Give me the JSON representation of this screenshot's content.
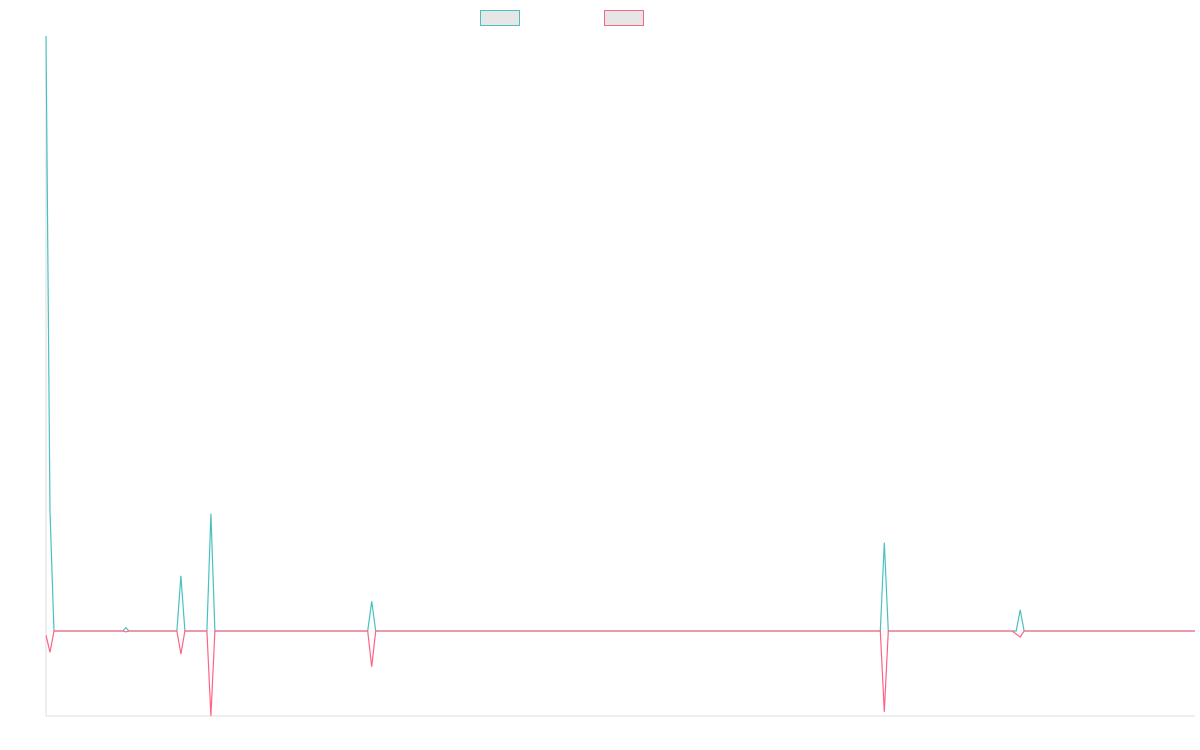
{
  "chart_data": {
    "type": "line",
    "title": "",
    "xlabel": "",
    "ylabel": "",
    "grid": false,
    "legend_placement": "top-center",
    "xlim": [
      0,
      1150
    ],
    "ylim": [
      -100,
      700
    ],
    "series": [
      {
        "color": "#4bc0c0",
        "points": [
          [
            0,
            700
          ],
          [
            4,
            140
          ],
          [
            8,
            0
          ],
          [
            77,
            0
          ],
          [
            80,
            4
          ],
          [
            83,
            0
          ],
          [
            131,
            0
          ],
          [
            135,
            65
          ],
          [
            139,
            0
          ],
          [
            161,
            0
          ],
          [
            165,
            138
          ],
          [
            169,
            0
          ],
          [
            322,
            0
          ],
          [
            326,
            35
          ],
          [
            330,
            0
          ],
          [
            835,
            0
          ],
          [
            839,
            104
          ],
          [
            843,
            0
          ],
          [
            971,
            0
          ],
          [
            975,
            25
          ],
          [
            979,
            0
          ],
          [
            1150,
            0
          ]
        ]
      },
      {
        "color": "#ff6384",
        "points": [
          [
            0,
            -5
          ],
          [
            4,
            -25
          ],
          [
            8,
            0
          ],
          [
            77,
            0
          ],
          [
            80,
            -1
          ],
          [
            83,
            0
          ],
          [
            131,
            0
          ],
          [
            135,
            -27
          ],
          [
            139,
            0
          ],
          [
            161,
            0
          ],
          [
            165,
            -100
          ],
          [
            169,
            0
          ],
          [
            322,
            0
          ],
          [
            326,
            -42
          ],
          [
            330,
            0
          ],
          [
            835,
            0
          ],
          [
            839,
            -95
          ],
          [
            843,
            0
          ],
          [
            967,
            0
          ],
          [
            975,
            -7
          ],
          [
            979,
            0
          ],
          [
            1150,
            0
          ]
        ]
      }
    ]
  }
}
